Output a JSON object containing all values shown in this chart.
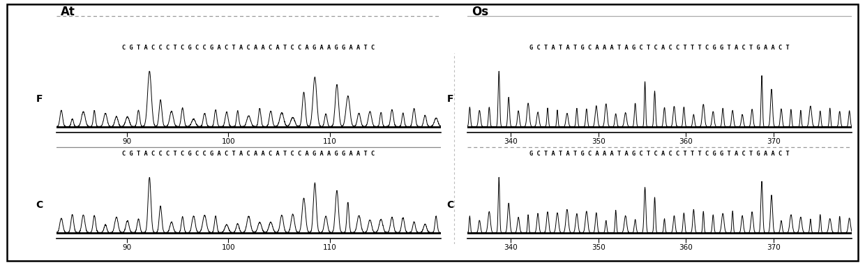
{
  "title_left": "At",
  "title_right": "Os",
  "seq_at": "C G T A C C C T C G C C G A C T A C A A C A T C C A G A A G G A A T C",
  "seq_os": "G C T A T A T G C A A A T A G C T C A C C T T T C G G T A C T G A A C T",
  "xticks_at": [
    90,
    100,
    110
  ],
  "xticks_os_top": [
    340,
    350,
    360,
    370
  ],
  "xticks_os_bot": [
    340,
    350,
    360,
    370
  ],
  "bg_color": "#ffffff",
  "border_color": "#000000"
}
